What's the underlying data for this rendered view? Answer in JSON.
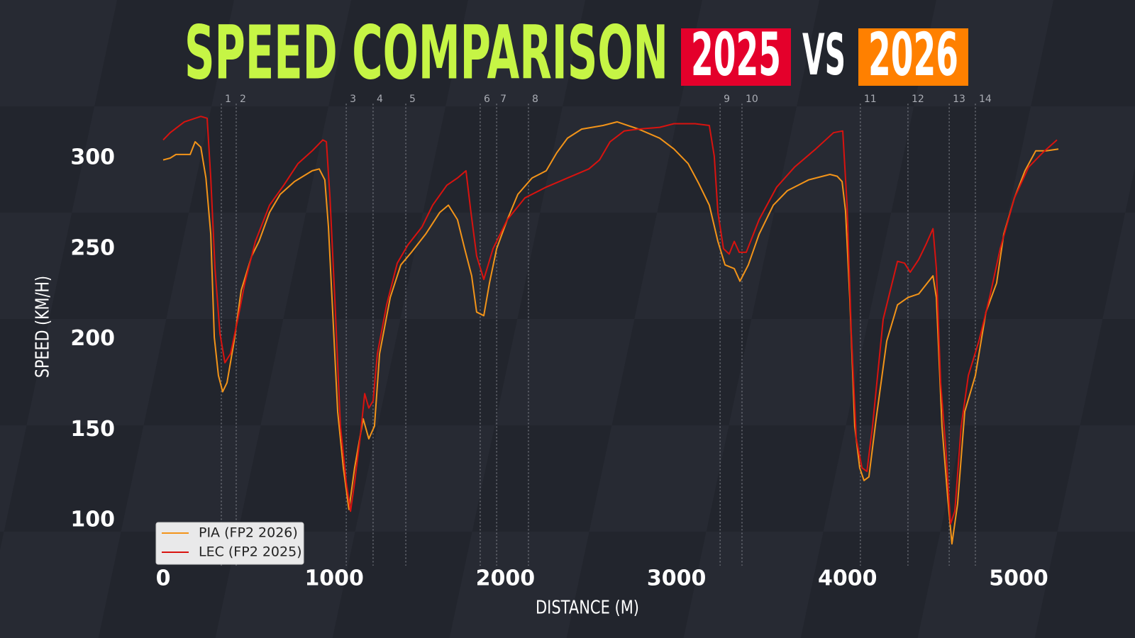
{
  "chart_data": {
    "type": "line",
    "title": "SPEED COMPARISON",
    "title_badges": [
      "2025",
      "VS",
      "2026"
    ],
    "x_label": "DISTANCE (M)",
    "y_label": "SPEED (KM/H)",
    "xlim": [
      -100,
      5300
    ],
    "ylim": [
      75,
      330
    ],
    "xticks": [
      0,
      1000,
      2000,
      3000,
      4000,
      5000
    ],
    "yticks": [
      100,
      150,
      200,
      250,
      300
    ],
    "legend": "lower left",
    "corners": [
      {
        "number": 1,
        "distance": 340
      },
      {
        "number": 2,
        "distance": 427
      },
      {
        "number": 3,
        "distance": 1070
      },
      {
        "number": 4,
        "distance": 1227
      },
      {
        "number": 5,
        "distance": 1418
      },
      {
        "number": 6,
        "distance": 1853
      },
      {
        "number": 7,
        "distance": 1949
      },
      {
        "number": 8,
        "distance": 2135
      },
      {
        "number": 9,
        "distance": 3255
      },
      {
        "number": 10,
        "distance": 3383
      },
      {
        "number": 11,
        "distance": 4075
      },
      {
        "number": 12,
        "distance": 4353
      },
      {
        "number": 13,
        "distance": 4594
      },
      {
        "number": 14,
        "distance": 4747
      }
    ],
    "series": [
      {
        "name": "PIA (FP2 2026)",
        "color": "#f39419",
        "x": [
          0,
          41,
          75,
          158,
          187,
          220,
          250,
          278,
          299,
          323,
          348,
          373,
          415,
          456,
          518,
          560,
          622,
          684,
          767,
          871,
          912,
          945,
          966,
          995,
          1020,
          1053,
          1086,
          1119,
          1169,
          1202,
          1235,
          1265,
          1327,
          1389,
          1451,
          1534,
          1617,
          1667,
          1720,
          1762,
          1803,
          1832,
          1874,
          1907,
          1949,
          2011,
          2073,
          2156,
          2239,
          2301,
          2363,
          2446,
          2571,
          2654,
          2778,
          2902,
          2985,
          3068,
          3130,
          3192,
          3242,
          3284,
          3338,
          3371,
          3420,
          3483,
          3566,
          3648,
          3773,
          3897,
          3939,
          3968,
          3988,
          4013,
          4042,
          4071,
          4096,
          4125,
          4167,
          4229,
          4292,
          4353,
          4416,
          4499,
          4519,
          4552,
          4585,
          4610,
          4643,
          4685,
          4747,
          4809,
          4871,
          4913,
          4975,
          5037,
          5100,
          5162,
          5232
        ],
        "values": [
          299,
          300,
          302,
          302,
          309,
          306,
          289,
          258,
          201,
          180,
          171,
          176,
          199,
          227,
          246,
          254,
          270,
          280,
          287,
          293,
          294,
          288,
          262,
          207,
          160,
          129,
          106,
          129,
          156,
          145,
          152,
          192,
          223,
          241,
          248,
          258,
          270,
          274,
          266,
          250,
          235,
          215,
          213,
          231,
          250,
          266,
          280,
          289,
          293,
          303,
          311,
          316,
          318,
          320,
          316,
          311,
          305,
          297,
          286,
          274,
          254,
          241,
          239,
          232,
          241,
          258,
          274,
          282,
          288,
          291,
          290,
          287,
          271,
          223,
          152,
          129,
          122,
          124,
          156,
          199,
          219,
          223,
          225,
          235,
          223,
          152,
          113,
          87,
          109,
          160,
          180,
          215,
          231,
          258,
          278,
          293,
          304,
          304,
          305
        ]
      },
      {
        "name": "LEC (FP2 2025)",
        "color": "#d9130f",
        "x": [
          0,
          41,
          124,
          220,
          257,
          278,
          303,
          332,
          361,
          394,
          436,
          477,
          539,
          622,
          705,
          788,
          871,
          933,
          954,
          975,
          1003,
          1036,
          1070,
          1095,
          1119,
          1153,
          1178,
          1202,
          1227,
          1252,
          1306,
          1368,
          1430,
          1513,
          1575,
          1658,
          1720,
          1770,
          1799,
          1832,
          1874,
          1928,
          2011,
          2114,
          2239,
          2363,
          2488,
          2550,
          2612,
          2695,
          2778,
          2902,
          2985,
          3109,
          3192,
          3221,
          3242,
          3275,
          3308,
          3338,
          3367,
          3408,
          3483,
          3586,
          3690,
          3814,
          3918,
          3972,
          3997,
          4022,
          4051,
          4084,
          4113,
          4146,
          4208,
          4292,
          4333,
          4366,
          4416,
          4457,
          4499,
          4519,
          4544,
          4573,
          4602,
          4627,
          4664,
          4706,
          4768,
          4830,
          4892,
          4975,
          5058,
          5141,
          5224
        ],
        "values": [
          310,
          314,
          320,
          323,
          322,
          289,
          239,
          203,
          187,
          192,
          211,
          231,
          254,
          274,
          285,
          297,
          304,
          310,
          309,
          278,
          223,
          152,
          121,
          105,
          121,
          147,
          170,
          162,
          166,
          192,
          219,
          242,
          252,
          262,
          274,
          285,
          289,
          293,
          270,
          246,
          233,
          250,
          266,
          278,
          284,
          289,
          294,
          299,
          309,
          315,
          316,
          317,
          319,
          319,
          318,
          301,
          270,
          250,
          247,
          254,
          248,
          248,
          266,
          284,
          295,
          305,
          314,
          315,
          274,
          203,
          145,
          129,
          127,
          152,
          211,
          243,
          242,
          237,
          244,
          252,
          261,
          239,
          176,
          141,
          98,
          105,
          152,
          180,
          199,
          223,
          250,
          278,
          295,
          303,
          310
        ]
      }
    ]
  }
}
